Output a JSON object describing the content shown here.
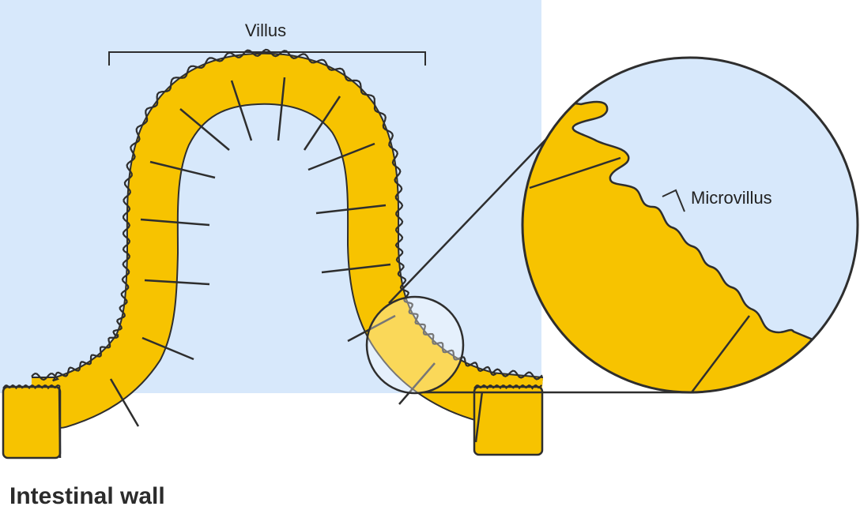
{
  "labels": {
    "villus": "Villus",
    "microvillus": "Microvillus",
    "caption": "Intestinal wall"
  },
  "colors": {
    "lumen": "#d7e8fb",
    "cell": "#f7c300",
    "outline": "#2e2e2e"
  }
}
